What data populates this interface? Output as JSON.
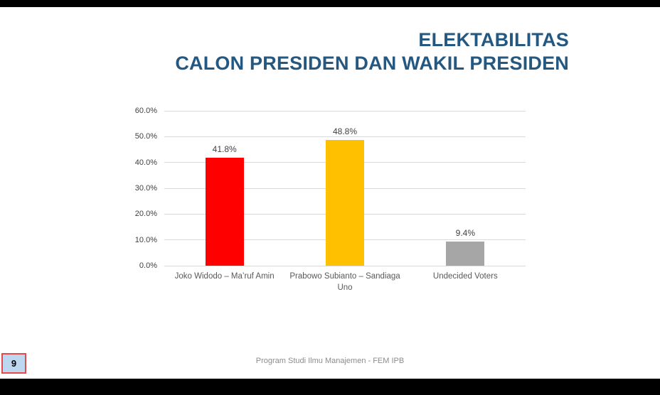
{
  "slide": {
    "title_line1": "ELEKTABILITAS",
    "title_line2": "CALON PRESIDEN DAN WAKIL PRESIDEN",
    "footer": "Program Studi Ilmu Manajemen - FEM IPB",
    "page_number": "9"
  },
  "colors": {
    "title_blue": "#255880",
    "gridline": "#d9d9d9",
    "tick_text": "#404040",
    "category_text": "#595959",
    "footer_text": "#8c8c8c",
    "page_box_fill": "#bdd7ee",
    "page_box_border": "#e5494d",
    "letterbox": "#000000"
  },
  "chart_data": {
    "type": "bar",
    "title": "ELEKTABILITAS CALON PRESIDEN DAN WAKIL PRESIDEN",
    "categories": [
      "Joko Widodo – Ma’ruf Amin",
      "Prabowo Subianto – Sandiaga Uno",
      "Undecided Voters"
    ],
    "values": [
      41.8,
      48.8,
      9.4
    ],
    "value_labels": [
      "41.8%",
      "48.8%",
      "9.4%"
    ],
    "bar_colors": [
      "#FF0000",
      "#FFC000",
      "#A6A6A6"
    ],
    "xlabel": "",
    "ylabel": "",
    "ylim": [
      0,
      60
    ],
    "ytick_labels": [
      "0.0%",
      "10.0%",
      "20.0%",
      "30.0%",
      "40.0%",
      "50.0%",
      "60.0%"
    ],
    "grid": true,
    "legend": false
  }
}
